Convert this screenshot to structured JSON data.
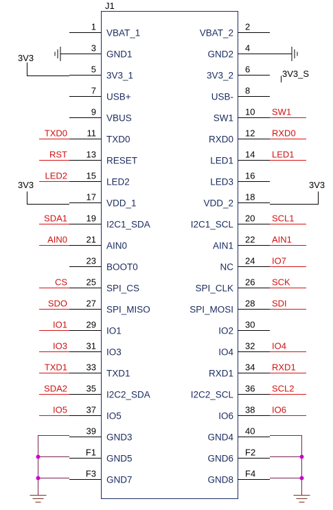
{
  "component": {
    "ref": "J1"
  },
  "colors": {
    "net": "#d01010",
    "pin_name": "#1a2a5e",
    "wire": "#000000",
    "junction": "#cc00cc",
    "ground_wire": "#7a1f4f"
  },
  "pins": [
    {
      "num": "1",
      "left_name": "VBAT_1",
      "left_net": "",
      "num_r": "2",
      "right_name": "VBAT_2",
      "right_net": ""
    },
    {
      "num": "3",
      "left_name": "GND1",
      "left_net": "",
      "num_r": "4",
      "right_name": "GND2",
      "right_net": ""
    },
    {
      "num": "5",
      "left_name": "3V3_1",
      "left_net": "",
      "num_r": "6",
      "right_name": "3V3_2",
      "right_net": ""
    },
    {
      "num": "7",
      "left_name": "USB+",
      "left_net": "",
      "num_r": "8",
      "right_name": "USB-",
      "right_net": ""
    },
    {
      "num": "9",
      "left_name": "VBUS",
      "left_net": "",
      "num_r": "10",
      "right_name": "SW1",
      "right_net": "SW1"
    },
    {
      "num": "11",
      "left_name": "TXD0",
      "left_net": "TXD0",
      "num_r": "12",
      "right_name": "RXD0",
      "right_net": "RXD0"
    },
    {
      "num": "13",
      "left_name": "RESET",
      "left_net": "RST",
      "num_r": "14",
      "right_name": "LED1",
      "right_net": "LED1"
    },
    {
      "num": "15",
      "left_name": "LED2",
      "left_net": "LED2",
      "num_r": "16",
      "right_name": "LED3",
      "right_net": ""
    },
    {
      "num": "17",
      "left_name": "VDD_1",
      "left_net": "",
      "num_r": "18",
      "right_name": "VDD_2",
      "right_net": ""
    },
    {
      "num": "19",
      "left_name": "I2C1_SDA",
      "left_net": "SDA1",
      "num_r": "20",
      "right_name": "I2C1_SCL",
      "right_net": "SCL1"
    },
    {
      "num": "21",
      "left_name": "AIN0",
      "left_net": "AIN0",
      "num_r": "22",
      "right_name": "AIN1",
      "right_net": "AIN1"
    },
    {
      "num": "23",
      "left_name": "BOOT0",
      "left_net": "",
      "num_r": "24",
      "right_name": "NC",
      "right_net": "IO7"
    },
    {
      "num": "25",
      "left_name": "SPI_CS",
      "left_net": "CS",
      "num_r": "26",
      "right_name": "SPI_CLK",
      "right_net": "SCK"
    },
    {
      "num": "27",
      "left_name": "SPI_MISO",
      "left_net": "SDO",
      "num_r": "28",
      "right_name": "SPI_MOSI",
      "right_net": "SDI"
    },
    {
      "num": "29",
      "left_name": "IO1",
      "left_net": "IO1",
      "num_r": "30",
      "right_name": "IO2",
      "right_net": ""
    },
    {
      "num": "31",
      "left_name": "IO3",
      "left_net": "IO3",
      "num_r": "32",
      "right_name": "IO4",
      "right_net": "IO4"
    },
    {
      "num": "33",
      "left_name": "TXD1",
      "left_net": "TXD1",
      "num_r": "34",
      "right_name": "RXD1",
      "right_net": "RXD1"
    },
    {
      "num": "35",
      "left_name": "I2C2_SDA",
      "left_net": "SDA2",
      "num_r": "36",
      "right_name": "I2C2_SCL",
      "right_net": "SCL2"
    },
    {
      "num": "37",
      "left_name": "IO5",
      "left_net": "IO5",
      "num_r": "38",
      "right_name": "IO6",
      "right_net": "IO6"
    },
    {
      "num": "39",
      "left_name": "GND3",
      "left_net": "",
      "num_r": "40",
      "right_name": "GND4",
      "right_net": ""
    },
    {
      "num": "F1",
      "left_name": "GND5",
      "left_net": "",
      "num_r": "F2",
      "right_name": "GND6",
      "right_net": ""
    },
    {
      "num": "F3",
      "left_name": "GND7",
      "left_net": "",
      "num_r": "F4",
      "right_name": "GND8",
      "right_net": ""
    }
  ],
  "power_labels": {
    "left_3v3_top": "3V3",
    "left_3v3_mid": "3V3",
    "right_3v3_mid": "3V3",
    "right_3v3_s": "3V3_S"
  },
  "icons": [
    "ground-symbol-icon",
    "junction-dot-icon"
  ]
}
